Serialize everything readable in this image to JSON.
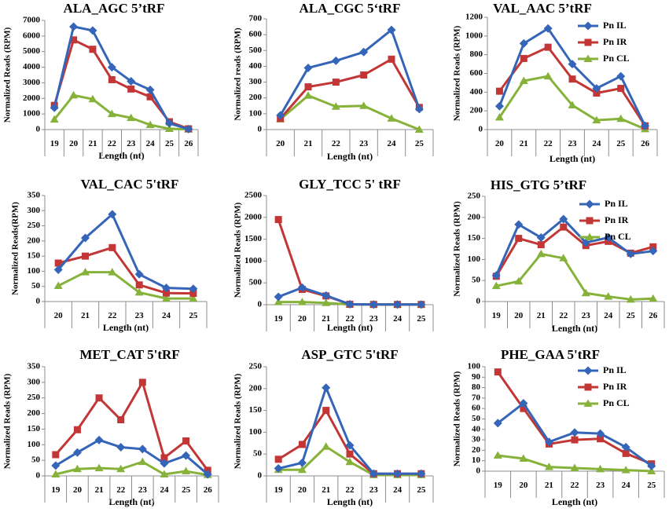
{
  "series_colors": {
    "Pn IL": "#3465b8",
    "Pn IR": "#c23636",
    "Pn CL": "#86b23a"
  },
  "chart_data": [
    {
      "type": "line",
      "title": "ALA_AGC  5’tRF",
      "ylabel": "Normalized Reads (RPM)",
      "xlabel": "Length (nt)",
      "categories": [
        "19",
        "20",
        "21",
        "22",
        "23",
        "24",
        "25",
        "26"
      ],
      "ylim": [
        0,
        7000
      ],
      "ystep": 1000,
      "series": [
        {
          "name": "Pn IL",
          "values": [
            1400,
            6600,
            6350,
            4000,
            3100,
            2550,
            400,
            30
          ]
        },
        {
          "name": "Pn IR",
          "values": [
            1550,
            5750,
            5150,
            3200,
            2600,
            2100,
            500,
            50
          ]
        },
        {
          "name": "Pn CL",
          "values": [
            650,
            2200,
            1950,
            1000,
            750,
            300,
            50,
            10
          ]
        }
      ]
    },
    {
      "type": "line",
      "title": "ALA_CGC 5‘tRF",
      "ylabel": "Normalized reads (RPM)",
      "xlabel": "Length (nt)",
      "categories": [
        "20",
        "21",
        "22",
        "23",
        "24",
        "25"
      ],
      "ylim": [
        0,
        700
      ],
      "ystep": 100,
      "series": [
        {
          "name": "Pn IL",
          "values": [
            90,
            390,
            435,
            490,
            630,
            130
          ]
        },
        {
          "name": "Pn IR",
          "values": [
            70,
            270,
            300,
            345,
            445,
            140
          ]
        },
        {
          "name": "Pn CL",
          "values": [
            65,
            215,
            145,
            150,
            70,
            0
          ]
        }
      ]
    },
    {
      "type": "line",
      "title": "VAL_AAC  5’tRF",
      "ylabel": "Normalized Reads (RPM)",
      "xlabel": "Length (nt)",
      "categories": [
        "20",
        "21",
        "22",
        "23",
        "24",
        "25",
        "26"
      ],
      "ylim": [
        0,
        1200
      ],
      "ystep": 200,
      "legend": [
        "Pn IL",
        "Pn IR",
        "Pn CL"
      ],
      "series": [
        {
          "name": "Pn IL",
          "values": [
            250,
            920,
            1080,
            700,
            440,
            570,
            40
          ]
        },
        {
          "name": "Pn IR",
          "values": [
            410,
            760,
            880,
            540,
            390,
            440,
            40
          ]
        },
        {
          "name": "Pn CL",
          "values": [
            130,
            520,
            570,
            260,
            100,
            115,
            5
          ]
        }
      ]
    },
    {
      "type": "line",
      "title": "VAL_CAC 5'tRF",
      "ylabel": "Normalized Reads(RPM)",
      "xlabel": "Length (nt)",
      "categories": [
        "20",
        "21",
        "22",
        "23",
        "24",
        "25"
      ],
      "ylim": [
        0,
        350
      ],
      "ystep": 50,
      "series": [
        {
          "name": "Pn IL",
          "values": [
            105,
            210,
            288,
            90,
            45,
            42
          ]
        },
        {
          "name": "Pn IR",
          "values": [
            127,
            150,
            178,
            55,
            28,
            27
          ]
        },
        {
          "name": "Pn CL",
          "values": [
            52,
            97,
            97,
            30,
            10,
            10
          ]
        }
      ]
    },
    {
      "type": "line",
      "title": "GLY_TCC 5' tRF",
      "ylabel": "Normalized Reads (RPM)",
      "xlabel": "Length (nt)",
      "categories": [
        "19",
        "20",
        "21",
        "22",
        "23",
        "24",
        "25"
      ],
      "ylim": [
        0,
        2500
      ],
      "ystep": 500,
      "series": [
        {
          "name": "Pn IL",
          "values": [
            180,
            390,
            210,
            10,
            5,
            5,
            5
          ]
        },
        {
          "name": "Pn IR",
          "values": [
            1950,
            350,
            200,
            10,
            5,
            5,
            5
          ]
        },
        {
          "name": "Pn CL",
          "values": [
            60,
            60,
            40,
            5,
            5,
            5,
            5
          ]
        }
      ]
    },
    {
      "type": "line",
      "title": "HIS_GTG  5’tRF",
      "ylabel": "Normalized Reads (RPM)",
      "xlabel": "Length (nt)",
      "categories": [
        "19",
        "20",
        "21",
        "22",
        "23",
        "24",
        "25",
        "26"
      ],
      "ylim": [
        0,
        250
      ],
      "ystep": 50,
      "legend": [
        "Pn IL",
        "Pn IR",
        "Pn CL"
      ],
      "series": [
        {
          "name": "Pn IL",
          "values": [
            62,
            183,
            152,
            196,
            140,
            152,
            113,
            120
          ]
        },
        {
          "name": "Pn IR",
          "values": [
            60,
            150,
            135,
            177,
            133,
            143,
            115,
            130
          ]
        },
        {
          "name": "Pn CL",
          "values": [
            37,
            48,
            113,
            103,
            20,
            12,
            5,
            7
          ]
        }
      ]
    },
    {
      "type": "line",
      "title": "MET_CAT 5'tRF",
      "ylabel": "Normalized Reads (RPM)",
      "xlabel": "Length (nt)",
      "categories": [
        "19",
        "20",
        "21",
        "22",
        "23",
        "24",
        "25",
        "26"
      ],
      "ylim": [
        0,
        350
      ],
      "ystep": 50,
      "series": [
        {
          "name": "Pn IL",
          "values": [
            33,
            75,
            115,
            92,
            86,
            40,
            65,
            5
          ]
        },
        {
          "name": "Pn IR",
          "values": [
            68,
            148,
            250,
            180,
            300,
            58,
            112,
            18
          ]
        },
        {
          "name": "Pn CL",
          "values": [
            5,
            22,
            25,
            22,
            45,
            5,
            15,
            3
          ]
        }
      ]
    },
    {
      "type": "line",
      "title": "ASP_GTC 5'tRF",
      "ylabel": "Normalized Reads (RPM)",
      "xlabel": "Length (nt)",
      "categories": [
        "19",
        "20",
        "21",
        "22",
        "23",
        "24",
        "25"
      ],
      "ylim": [
        0,
        250
      ],
      "ystep": 50,
      "series": [
        {
          "name": "Pn IL",
          "values": [
            17,
            30,
            202,
            70,
            5,
            5,
            5
          ]
        },
        {
          "name": "Pn IR",
          "values": [
            38,
            72,
            150,
            50,
            5,
            5,
            5
          ]
        },
        {
          "name": "Pn CL",
          "values": [
            14,
            14,
            67,
            32,
            2,
            2,
            2
          ]
        }
      ]
    },
    {
      "type": "line",
      "title": "PHE_GAA 5'tRF",
      "ylabel": "Normalized Reads (RPM)",
      "xlabel": "Length (nt)",
      "categories": [
        "19",
        "20",
        "21",
        "22",
        "23",
        "24",
        "25"
      ],
      "ylim": [
        0,
        100
      ],
      "ystep": 10,
      "legend": [
        "Pn IL",
        "Pn IR",
        "Pn CL"
      ],
      "series": [
        {
          "name": "Pn IL",
          "values": [
            46,
            65,
            28,
            37,
            36,
            23,
            5
          ]
        },
        {
          "name": "Pn IR",
          "values": [
            95,
            60,
            26,
            30,
            31,
            17,
            7
          ]
        },
        {
          "name": "Pn CL",
          "values": [
            15,
            12,
            4,
            3,
            2,
            1,
            0
          ]
        }
      ]
    }
  ]
}
